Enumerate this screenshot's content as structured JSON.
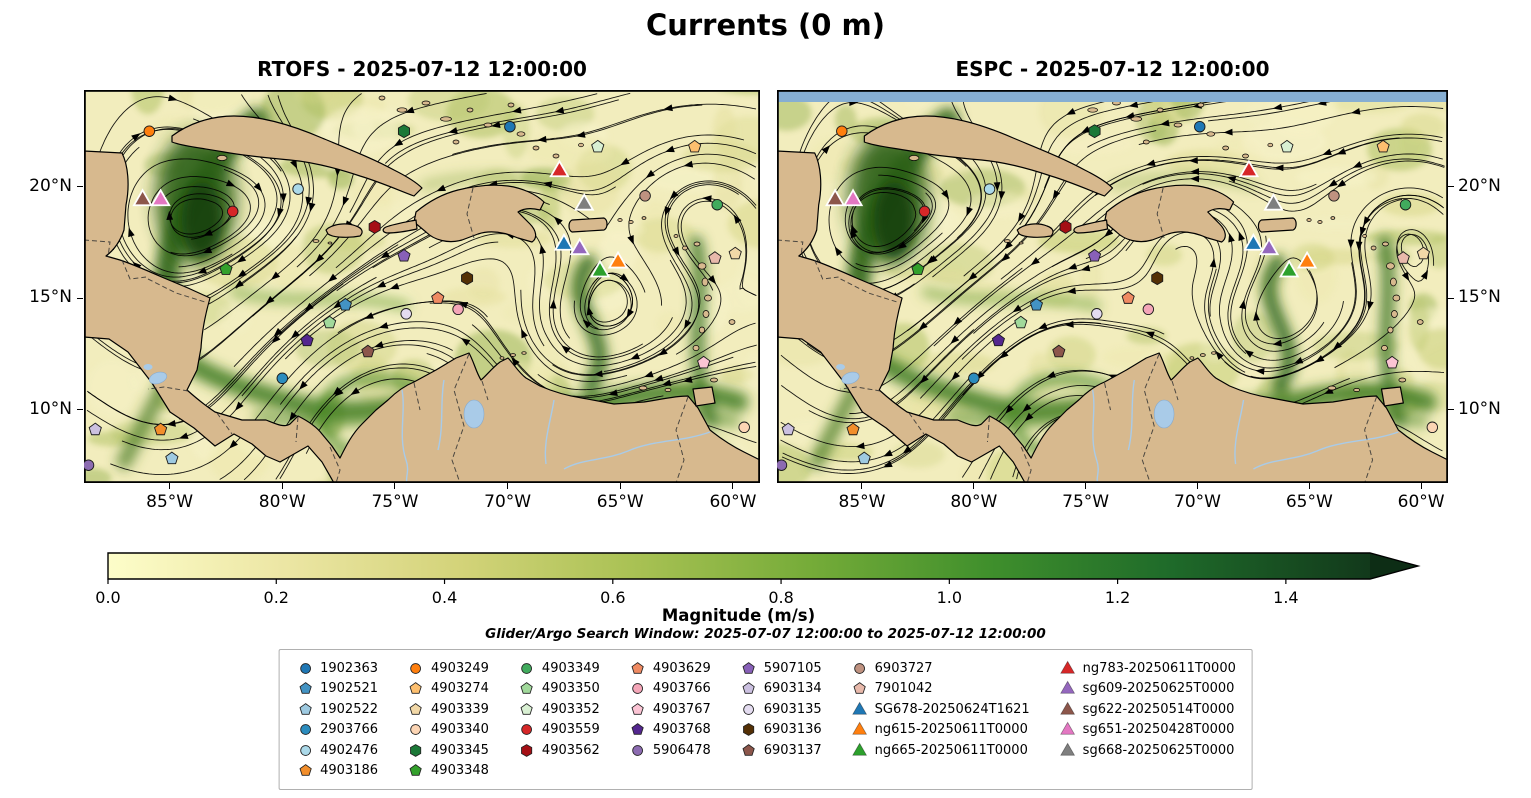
{
  "figure_title": "Currents (0 m)",
  "panels": [
    {
      "model": "RTOFS",
      "title": "RTOFS - 2025-07-12 12:00:00"
    },
    {
      "model": "ESPC",
      "title": "ESPC - 2025-07-12 12:00:00"
    }
  ],
  "axes": {
    "x_tick_labels": [
      "85°W",
      "80°W",
      "75°W",
      "70°W",
      "65°W",
      "60°W"
    ],
    "x_tick_lons": [
      -85,
      -80,
      -75,
      -70,
      -65,
      -60
    ],
    "y_tick_labels": [
      "20°N",
      "15°N",
      "10°N"
    ],
    "y_tick_lats": [
      20,
      15,
      10
    ]
  },
  "colorbar": {
    "label": "Magnitude (m/s)",
    "tick_labels": [
      "0.0",
      "0.2",
      "0.4",
      "0.6",
      "0.8",
      "1.0",
      "1.2",
      "1.4"
    ],
    "tick_values": [
      0,
      0.2,
      0.4,
      0.6,
      0.8,
      1.0,
      1.2,
      1.4
    ],
    "vmin": 0.0,
    "vmax": 1.5,
    "extend": "max",
    "arrow_color": "#0d2d15",
    "gradient": [
      [
        0,
        "#fdfdc9"
      ],
      [
        0.14,
        "#ece6a4"
      ],
      [
        0.28,
        "#d3d379"
      ],
      [
        0.42,
        "#a8c153"
      ],
      [
        0.56,
        "#74ab38"
      ],
      [
        0.7,
        "#3f8f2c"
      ],
      [
        0.84,
        "#1f6b2a"
      ],
      [
        1,
        "#12391b"
      ]
    ]
  },
  "annotations": {
    "search_window": "Glider/Argo Search Window: 2025-07-07 12:00:00 to 2025-07-12 12:00:00"
  },
  "chart_data": {
    "type": "scatter",
    "title": "Currents (0 m)",
    "depth_m": 0,
    "valid_time": "2025-07-12 12:00:00",
    "subplots": [
      "RTOFS - 2025-07-12 12:00:00",
      "ESPC - 2025-07-12 12:00:00"
    ],
    "field": "ocean current magnitude with streamlines, Caribbean Sea region",
    "extent": {
      "lon": [
        -88.8,
        -58.8
      ],
      "lat": [
        6.7,
        24.35
      ]
    },
    "colorbar": {
      "label": "Magnitude (m/s)",
      "range": [
        0,
        1.5
      ],
      "extend": "max"
    },
    "search_window": {
      "start": "2025-07-07 12:00:00",
      "end": "2025-07-12 12:00:00"
    },
    "platforms": [
      {
        "label": "1902363",
        "type": "argo",
        "shape": "circle",
        "color": "#1f77b4",
        "lon": -69.9,
        "lat": 22.7
      },
      {
        "label": "1902521",
        "type": "argo",
        "shape": "pentagon",
        "color": "#4393c3",
        "lon": -77.2,
        "lat": 14.7
      },
      {
        "label": "1902522",
        "type": "argo",
        "shape": "pentagon",
        "color": "#9ecae1",
        "lon": -84.9,
        "lat": 7.8
      },
      {
        "label": "2903766",
        "type": "argo",
        "shape": "circle",
        "color": "#2b8cbe",
        "lon": -80.0,
        "lat": 11.4
      },
      {
        "label": "4902476",
        "type": "argo",
        "shape": "circle",
        "color": "#abd9e9",
        "lon": -79.3,
        "lat": 19.9
      },
      {
        "label": "4903186",
        "type": "argo",
        "shape": "pentagon",
        "color": "#f28e2b",
        "lon": -85.4,
        "lat": 9.1
      },
      {
        "label": "4903249",
        "type": "argo",
        "shape": "circle",
        "color": "#ff7f0e",
        "lon": -85.9,
        "lat": 22.5
      },
      {
        "label": "4903274",
        "type": "argo",
        "shape": "pentagon",
        "color": "#fdbf6f",
        "lon": -61.7,
        "lat": 21.8
      },
      {
        "label": "4903339",
        "type": "argo",
        "shape": "pentagon",
        "color": "#f2d8a7",
        "lon": -59.9,
        "lat": 17.0
      },
      {
        "label": "4903340",
        "type": "argo",
        "shape": "circle",
        "color": "#fcd5b4",
        "lon": -59.5,
        "lat": 9.2
      },
      {
        "label": "4903345",
        "type": "argo",
        "shape": "hexagon",
        "color": "#1b7837",
        "lon": -74.6,
        "lat": 22.5
      },
      {
        "label": "4903348",
        "type": "argo",
        "shape": "pentagon",
        "color": "#33a02c",
        "lon": -82.5,
        "lat": 16.3
      },
      {
        "label": "4903349",
        "type": "argo",
        "shape": "circle",
        "color": "#41ab5d",
        "lon": -60.7,
        "lat": 19.2
      },
      {
        "label": "4903350",
        "type": "argo",
        "shape": "pentagon",
        "color": "#a1d99b",
        "lon": -77.9,
        "lat": 13.9
      },
      {
        "label": "4903352",
        "type": "argo",
        "shape": "pentagon",
        "color": "#d9f0d3",
        "lon": -66.0,
        "lat": 21.8
      },
      {
        "label": "4903559",
        "type": "argo",
        "shape": "circle",
        "color": "#d62728",
        "lon": -82.2,
        "lat": 18.9
      },
      {
        "label": "4903562",
        "type": "argo",
        "shape": "hexagon",
        "color": "#a50f15",
        "lon": -75.9,
        "lat": 18.2
      },
      {
        "label": "4903629",
        "type": "argo",
        "shape": "pentagon",
        "color": "#ef8a62",
        "lon": -73.1,
        "lat": 15.0
      },
      {
        "label": "4903766",
        "type": "argo",
        "shape": "circle",
        "color": "#f4a6b8",
        "lon": -72.2,
        "lat": 14.5
      },
      {
        "label": "4903767",
        "type": "argo",
        "shape": "pentagon",
        "color": "#fbc4d4",
        "lon": -61.3,
        "lat": 12.1
      },
      {
        "label": "4903768",
        "type": "argo",
        "shape": "pentagon",
        "color": "#54278f",
        "lon": -78.9,
        "lat": 13.1
      },
      {
        "label": "5906478",
        "type": "argo",
        "shape": "circle",
        "color": "#8c6bb1",
        "lon": -88.6,
        "lat": 7.5
      },
      {
        "label": "5907105",
        "type": "argo",
        "shape": "pentagon",
        "color": "#8860b8",
        "lon": -74.6,
        "lat": 16.9
      },
      {
        "label": "6903134",
        "type": "argo",
        "shape": "pentagon",
        "color": "#cbc0e0",
        "lon": -88.3,
        "lat": 9.1
      },
      {
        "label": "6903135",
        "type": "argo",
        "shape": "circle",
        "color": "#e4dcf0",
        "lon": -74.5,
        "lat": 14.3
      },
      {
        "label": "6903136",
        "type": "argo",
        "shape": "hexagon",
        "color": "#543005",
        "lon": -71.8,
        "lat": 15.9
      },
      {
        "label": "6903137",
        "type": "argo",
        "shape": "pentagon",
        "color": "#8c564b",
        "lon": -76.2,
        "lat": 12.6
      },
      {
        "label": "6903727",
        "type": "argo",
        "shape": "circle",
        "color": "#bf9280",
        "lon": -63.9,
        "lat": 19.6
      },
      {
        "label": "7901042",
        "type": "argo",
        "shape": "pentagon",
        "color": "#e8b9ab",
        "lon": -60.8,
        "lat": 16.8
      },
      {
        "label": "SG678-20250624T1621",
        "type": "glider",
        "shape": "triangle",
        "color": "#1f77b4",
        "lon": -67.5,
        "lat": 17.4
      },
      {
        "label": "ng615-20250611T0000",
        "type": "glider",
        "shape": "triangle",
        "color": "#ff7f0e",
        "lon": -65.1,
        "lat": 16.6
      },
      {
        "label": "ng665-20250611T0000",
        "type": "glider",
        "shape": "triangle",
        "color": "#2ca02c",
        "lon": -65.9,
        "lat": 16.2
      },
      {
        "label": "ng783-20250611T0000",
        "type": "glider",
        "shape": "triangle",
        "color": "#d62728",
        "lon": -67.7,
        "lat": 20.7
      },
      {
        "label": "sg609-20250625T0000",
        "type": "glider",
        "shape": "triangle",
        "color": "#9467bd",
        "lon": -66.8,
        "lat": 17.2
      },
      {
        "label": "sg622-20250514T0000",
        "type": "glider",
        "shape": "triangle",
        "color": "#8c564b",
        "lon": -86.2,
        "lat": 19.4
      },
      {
        "label": "sg651-20250428T0000",
        "type": "glider",
        "shape": "triangle",
        "color": "#e377c2",
        "lon": -85.4,
        "lat": 19.4
      },
      {
        "label": "sg668-20250625T0000",
        "type": "glider",
        "shape": "triangle",
        "color": "#7f7f7f",
        "lon": -66.6,
        "lat": 19.2
      }
    ]
  },
  "legend": {
    "columns": [
      [
        "1902363",
        "1902521",
        "1902522",
        "2903766",
        "4902476",
        "4903186"
      ],
      [
        "4903249",
        "4903274",
        "4903339",
        "4903340",
        "4903345",
        "4903348"
      ],
      [
        "4903349",
        "4903350",
        "4903352",
        "4903559",
        "4903562"
      ],
      [
        "4903629",
        "4903766",
        "4903767",
        "4903768",
        "5906478"
      ],
      [
        "5907105",
        "6903134",
        "6903135",
        "6903136",
        "6903137"
      ],
      [
        "6903727",
        "7901042",
        "SG678-20250624T1621",
        "ng615-20250611T0000",
        "ng665-20250611T0000"
      ],
      [
        "ng783-20250611T0000",
        "sg609-20250625T0000",
        "sg622-20250514T0000",
        "sg651-20250428T0000",
        "sg668-20250625T0000"
      ]
    ]
  }
}
